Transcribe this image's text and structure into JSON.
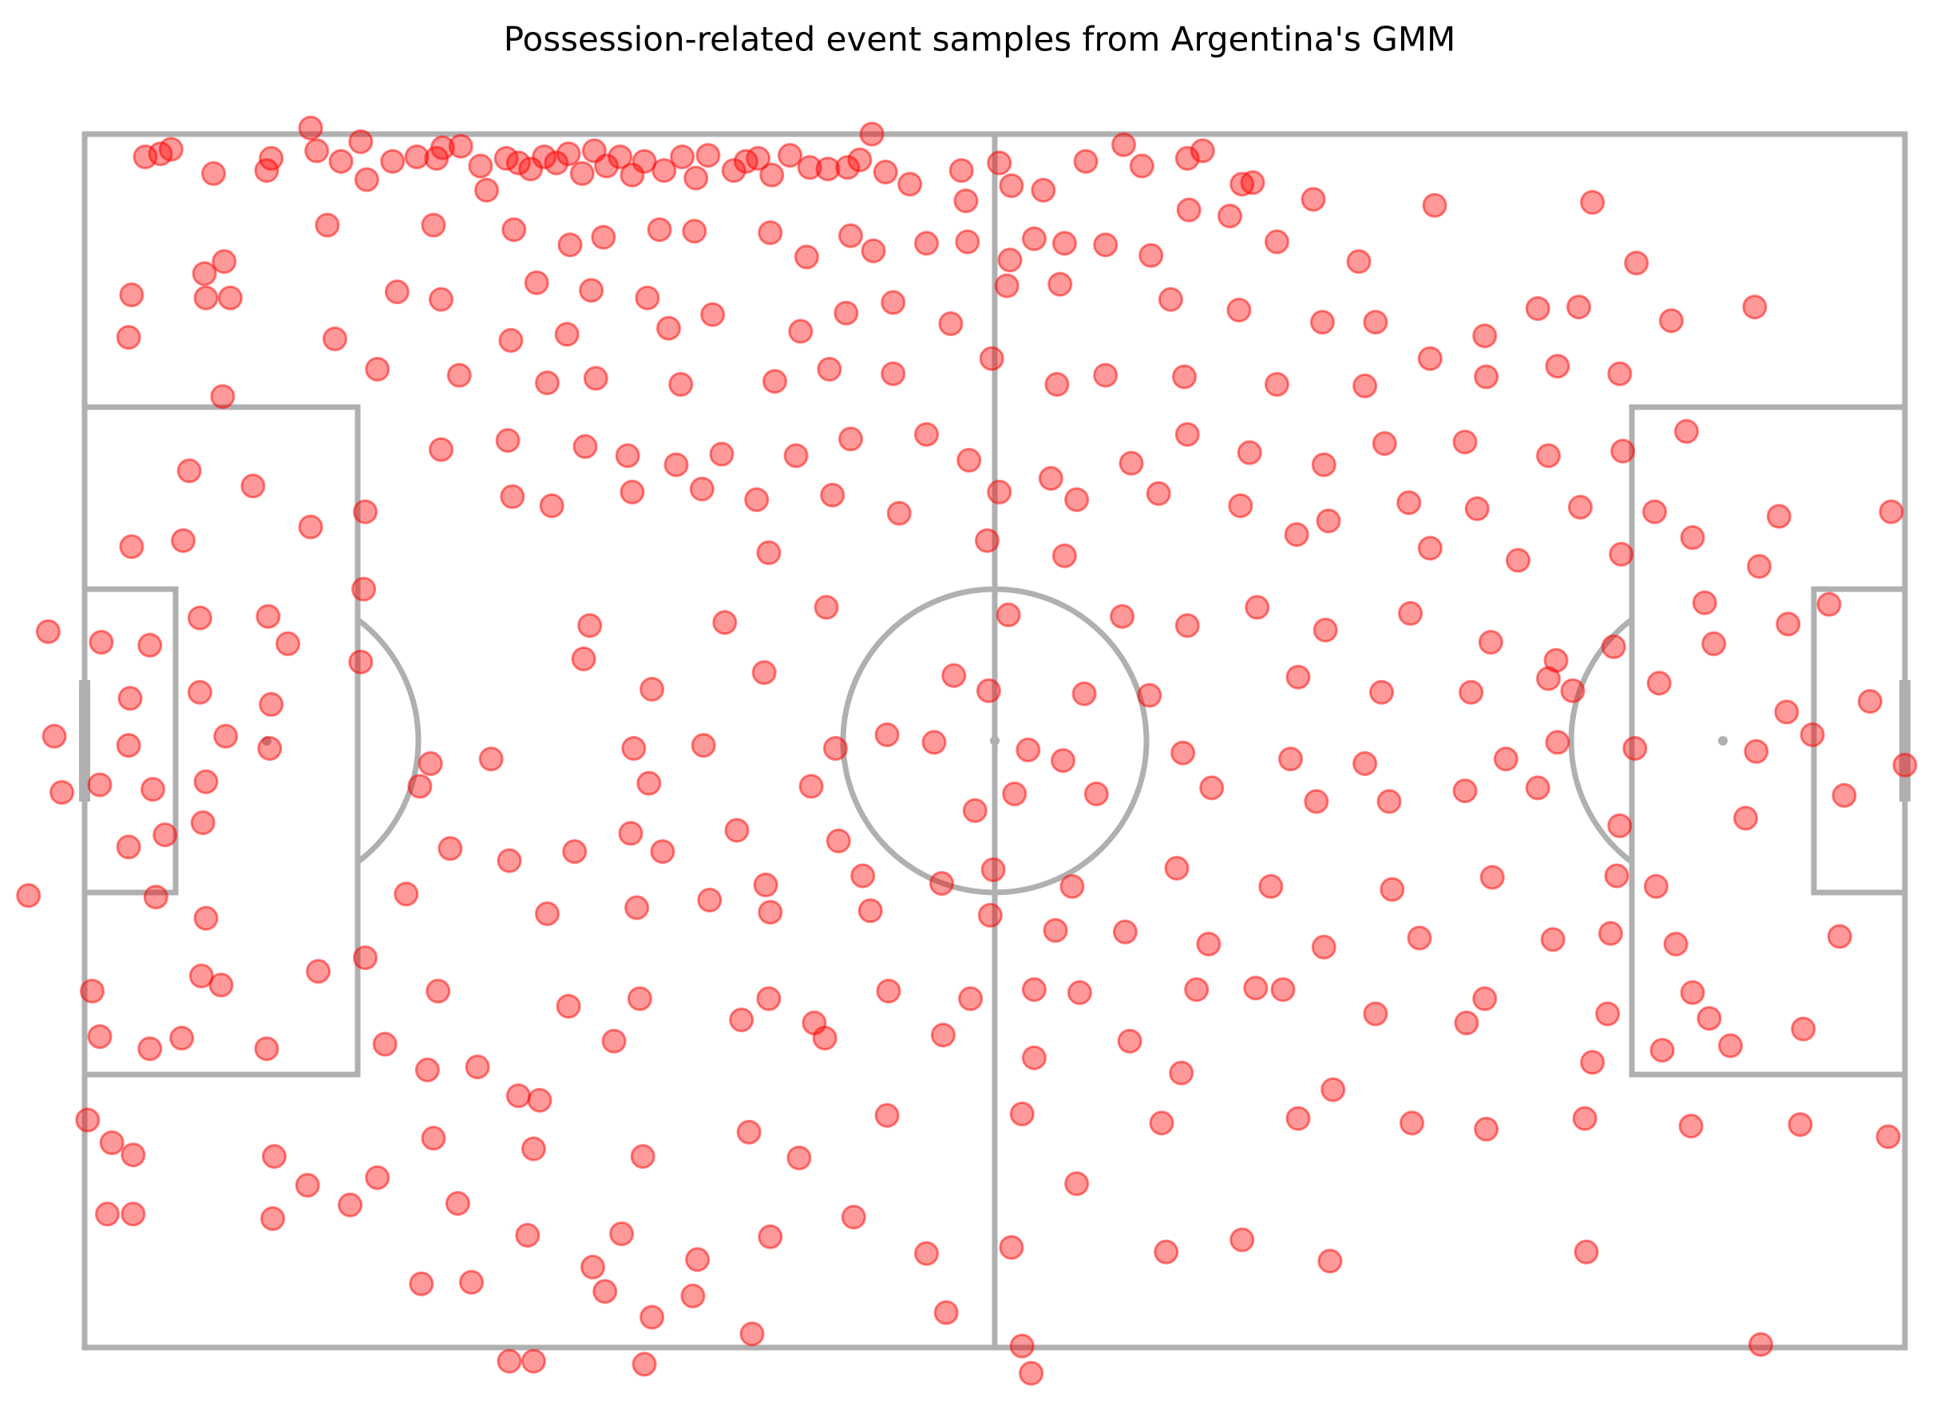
{
  "chart_data": {
    "type": "scatter",
    "title": "Possession-related event samples from Argentina's GMM",
    "xlim": [
      0,
      120
    ],
    "ylim": [
      80,
      0
    ],
    "series": [
      {
        "color": "#ff0000",
        "x": [
          4,
          5,
          5.7,
          8.5,
          12,
          12.3,
          14.9,
          15.3,
          16.9,
          18.2,
          18.6,
          20.3,
          21.9,
          23.2,
          23.6,
          24.8,
          26.1,
          26.5,
          27.8,
          28.6,
          29.4,
          30.3,
          31.1,
          31.9,
          32.8,
          33.6,
          34.4,
          35.3,
          36.1,
          36.9,
          38.2,
          39.4,
          40.3,
          41.1,
          42.8,
          43.6,
          44.4,
          45.3,
          46.5,
          47.8,
          49,
          50.3,
          51.1,
          51.9,
          52.8,
          54.4,
          57.8,
          58.1,
          60.3,
          61.1,
          63.2,
          66,
          68.5,
          69.7,
          72.7,
          73.7,
          76.3,
          77,
          16,
          23,
          28.3,
          32,
          34.2,
          37.9,
          40.2,
          45.2,
          47.6,
          50.5,
          52,
          55.5,
          58.2,
          61,
          62.6,
          64.6,
          67.3,
          70.3,
          72.8,
          75.5,
          78.6,
          81,
          84,
          89,
          99.4,
          102.3,
          7.9,
          9.2,
          3.1,
          8,
          9.6,
          20.6,
          23.5,
          29.8,
          31.8,
          33.4,
          37.1,
          38.5,
          41.4,
          47.2,
          50.2,
          53.3,
          57.1,
          60.8,
          64.3,
          71.6,
          76.1,
          81.6,
          85.1,
          88.7,
          92.3,
          95.8,
          98.5,
          104.6,
          110.1,
          2.9,
          16.5,
          19.3,
          24.7,
          28.1,
          30.5,
          33.7,
          39.3,
          45.5,
          49.1,
          53.3,
          59.8,
          64.1,
          67.3,
          72.5,
          78.6,
          84.4,
          92.4,
          97.1,
          101.2,
          9.1,
          23.5,
          27.9,
          33,
          35.8,
          39,
          42,
          46.9,
          50.5,
          55.5,
          58.3,
          63.7,
          69,
          72.7,
          76.8,
          81.7,
          85.7,
          91,
          96.5,
          101.4,
          105.6,
          6.9,
          11.1,
          18.5,
          28.2,
          30.8,
          36.1,
          40.7,
          44.3,
          49.3,
          53.7,
          60.3,
          65.4,
          70.8,
          76.2,
          82,
          87.3,
          91.8,
          98.6,
          103.5,
          3.1,
          6.5,
          14.9,
          45.1,
          59.5,
          64.6,
          79.9,
          88.7,
          94.5,
          101.3,
          106,
          110.4,
          111.7,
          119.1,
          -2.4,
          1.1,
          4.3,
          7.6,
          12.1,
          13.4,
          18.4,
          33.3,
          42.2,
          48.9,
          60.9,
          68.4,
          72.7,
          77.3,
          81.8,
          87.4,
          92.7,
          97,
          100.8,
          107.4,
          112.3,
          115,
          106.8,
          3,
          7.6,
          12.3,
          18.2,
          32.9,
          37.4,
          44.8,
          57.3,
          59.6,
          65.9,
          70.2,
          80,
          85.5,
          91.4,
          96.5,
          98.1,
          103.8,
          112.2,
          117.7,
          -2,
          2.9,
          9.3,
          12.2,
          22.8,
          26.8,
          36.2,
          40.8,
          49.5,
          52.9,
          56,
          62.2,
          64.5,
          72.4,
          79.5,
          84.4,
          93.7,
          97.1,
          102.2,
          110.2,
          113.9,
          -1.5,
          1,
          4.5,
          8,
          22.1,
          37.2,
          47.9,
          58.7,
          61.3,
          66.7,
          74.3,
          81.2,
          86,
          91,
          95.8,
          101.2,
          109.5,
          116,
          120,
          2.9,
          5.3,
          7.8,
          24.1,
          28,
          32.3,
          36,
          38.1,
          43,
          44.9,
          49.7,
          51.3,
          56.5,
          59.9,
          65.1,
          72,
          78.2,
          86.2,
          92.8,
          101,
          103.6,
          4.7,
          8,
          21.2,
          30.5,
          36.4,
          41.2,
          45.2,
          51.8,
          59.7,
          64,
          68.6,
          74.1,
          81.7,
          88,
          96.8,
          100.6,
          104.9,
          115.7,
          0.5,
          7.7,
          9,
          15.4,
          18.5,
          23.3,
          31.9,
          36.6,
          45.1,
          48.1,
          53,
          58.4,
          62.6,
          65.6,
          73.3,
          77.2,
          79,
          85.1,
          91.1,
          100.4,
          106,
          107.1,
          92.3,
          -3.7,
          1,
          4.3,
          6.4,
          12,
          19.8,
          22.6,
          25.9,
          28.6,
          34.9,
          43.3,
          48.8,
          56.6,
          62.6,
          68.9,
          72.3,
          82.3,
          99.4,
          104,
          108.5,
          113.3,
          0.2,
          1.8,
          3.2,
          12.5,
          19.3,
          23,
          30,
          29.6,
          36.8,
          43.8,
          47.1,
          52.9,
          61.8,
          65.4,
          71,
          80,
          87.5,
          92.4,
          98.9,
          105.9,
          113.1,
          118.9,
          1.5,
          3.2,
          12.4,
          14.7,
          17.5,
          24.6,
          29.2,
          35.4,
          40.4,
          33.5,
          45.2,
          50.7,
          55.5,
          61.1,
          71.3,
          76.3,
          82.1,
          99,
          22.2,
          25.5,
          34.3,
          40.1,
          37.4,
          28,
          29.6,
          36.9,
          44,
          56.8,
          61.8,
          62.4,
          110.5
        ],
        "values": [
          1.5,
          1.3,
          1,
          2.6,
          2.4,
          1.6,
          -0.4,
          1.1,
          1.8,
          0.5,
          3,
          1.8,
          1.5,
          1.6,
          0.9,
          0.8,
          2.1,
          3.7,
          1.6,
          1.9,
          2.3,
          1.5,
          1.9,
          1.3,
          2.6,
          1.1,
          2.1,
          1.5,
          2.7,
          1.8,
          2.4,
          1.5,
          2.9,
          1.4,
          2.4,
          1.8,
          1.6,
          2.7,
          1.4,
          2.2,
          2.3,
          2.2,
          1.7,
          0,
          2.5,
          3.3,
          2.4,
          4.4,
          1.9,
          3.4,
          3.7,
          1.8,
          0.7,
          2.1,
          1.6,
          1.1,
          3.3,
          3.2,
          6,
          6,
          6.3,
          7.3,
          6.8,
          6.3,
          6.4,
          6.5,
          8.1,
          6.7,
          7.7,
          7.2,
          7.1,
          8.3,
          6.9,
          7.2,
          7.3,
          8,
          5,
          5.4,
          7.1,
          4.3,
          8.4,
          4.7,
          4.5,
          8.5,
          9.2,
          8.4,
          10.6,
          10.8,
          10.8,
          10.4,
          10.9,
          9.8,
          13.2,
          10.3,
          10.8,
          12.8,
          11.9,
          13,
          11.8,
          11.1,
          12.5,
          10,
          9.9,
          10.9,
          11.6,
          12.4,
          12.4,
          14.8,
          13.3,
          11.5,
          11.4,
          12.3,
          11.4,
          13.4,
          13.5,
          15.5,
          15.9,
          13.6,
          16.4,
          16.1,
          16.5,
          16.3,
          15.5,
          15.8,
          14.8,
          16.5,
          15.9,
          16,
          16.5,
          16.6,
          16,
          15.3,
          15.8,
          17.3,
          20.8,
          20.2,
          20.6,
          21.2,
          21.8,
          21.1,
          21.2,
          20.1,
          19.8,
          21.5,
          22.7,
          21.7,
          19.8,
          21,
          21.8,
          20.4,
          20.3,
          21.2,
          20.9,
          19.6,
          22.2,
          23.2,
          24.9,
          23.9,
          24.5,
          23.6,
          23.4,
          24.1,
          23.8,
          25,
          23.6,
          24.1,
          23.7,
          24.5,
          25.5,
          24.3,
          24.7,
          24.6,
          24.9,
          27.2,
          26.8,
          25.9,
          27.6,
          26.8,
          27.8,
          26.4,
          27.3,
          28.1,
          27.7,
          26.6,
          28.5,
          25.2,
          24.9,
          32.8,
          33.5,
          33.7,
          31.9,
          31.8,
          33.6,
          30,
          32.4,
          32.2,
          31.2,
          31.7,
          31.8,
          32.4,
          31.2,
          32.7,
          31.6,
          33.5,
          34.7,
          33.8,
          33.6,
          32.3,
          31,
          30.9,
          37.2,
          36.8,
          37.6,
          34.8,
          34.6,
          36.6,
          35.5,
          35.7,
          36.7,
          36.9,
          37,
          35.8,
          36.8,
          36.8,
          35.9,
          36.7,
          36.2,
          38.1,
          37.4,
          39.7,
          40.3,
          39.7,
          40.5,
          41.5,
          41.2,
          40.5,
          40.3,
          40.5,
          39.6,
          40.1,
          40.6,
          41.3,
          40.8,
          41.2,
          41.5,
          41.2,
          40.1,
          40.5,
          40.7,
          39.6,
          43.4,
          42.9,
          43.2,
          42.7,
          43,
          42.8,
          43,
          44.6,
          43.5,
          43.5,
          43.1,
          44,
          44,
          43.3,
          43.1,
          45.6,
          45.1,
          43.6,
          41.6,
          47,
          46.2,
          45.4,
          47.1,
          47.9,
          47.3,
          46.1,
          47.3,
          45.9,
          49.5,
          46.6,
          48.9,
          49.4,
          48.5,
          49.6,
          48.4,
          49.6,
          49.8,
          49,
          48.9,
          49.6,
          50.3,
          51.7,
          50.1,
          51.4,
          51,
          50.5,
          51.3,
          51.2,
          51.5,
          52.5,
          52.6,
          53.4,
          53.6,
          53,
          53.1,
          52.7,
          53.4,
          52.9,
          56.5,
          55.5,
          56.1,
          55.2,
          54.3,
          56.5,
          57.5,
          57,
          57,
          58.6,
          56.5,
          57,
          56.4,
          56.6,
          56.4,
          56.3,
          56.4,
          58,
          58.6,
          58,
          56.6,
          58.3,
          57,
          50.2,
          59.5,
          60.3,
          59.6,
          60.3,
          60,
          61.7,
          61.5,
          63.4,
          59.8,
          58.4,
          59.6,
          59.4,
          60.9,
          59.8,
          61.9,
          63,
          61.2,
          60.4,
          60.1,
          59,
          65,
          66.5,
          67.3,
          67.4,
          68.8,
          66.2,
          63.7,
          66.9,
          67.4,
          65.8,
          67.5,
          64.7,
          64.6,
          69.2,
          65.2,
          64.9,
          65.2,
          65.6,
          64.9,
          65.4,
          65.3,
          66.1,
          71.2,
          71.2,
          71.5,
          69.3,
          70.6,
          70.5,
          72.6,
          72.5,
          74.2,
          74.7,
          72.7,
          71.4,
          73.8,
          73.4,
          73.7,
          72.9,
          74.3,
          73.7,
          75.8,
          75.7,
          76.3,
          76.6,
          78,
          80.9,
          80.9,
          81.1,
          79.1,
          77.7,
          79.9,
          81.7,
          79.8
        ]
      }
    ]
  }
}
